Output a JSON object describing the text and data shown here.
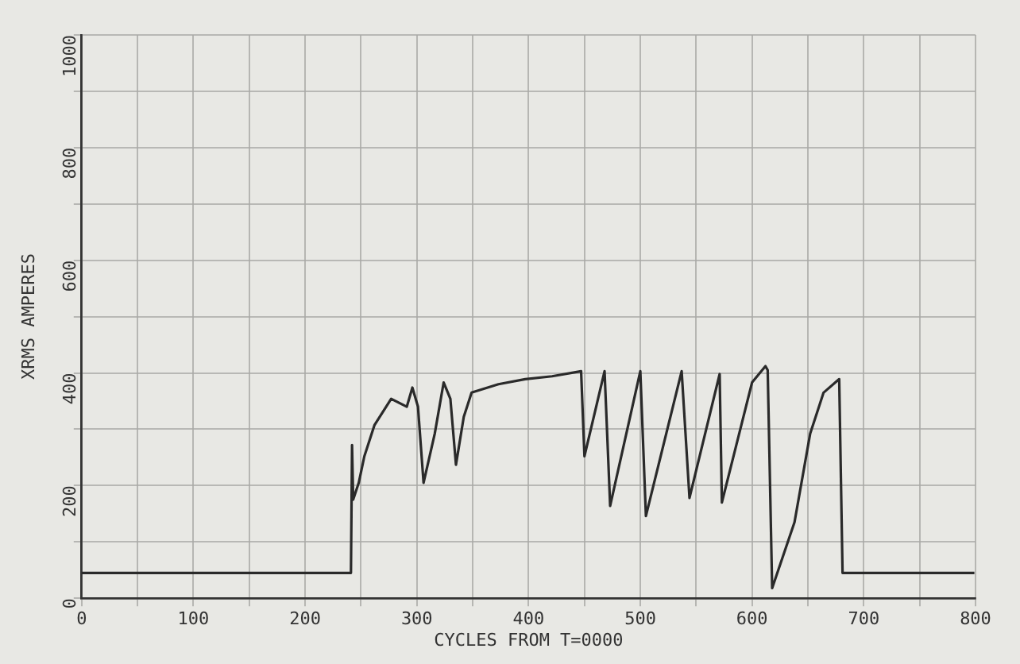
{
  "chart_data": {
    "type": "line",
    "xlabel": "CYCLES FROM T=0000",
    "ylabel": "XRMS AMPERES",
    "xlim": [
      0,
      800
    ],
    "ylim": [
      0,
      1000
    ],
    "xticks": [
      0,
      {
        "value": 50,
        "label": null
      },
      100,
      {
        "value": 150,
        "label": null
      },
      200,
      {
        "value": 250,
        "label": null
      },
      300,
      {
        "value": 350,
        "label": null
      },
      400,
      {
        "value": 450,
        "label": null
      },
      500,
      {
        "value": 550,
        "label": null
      },
      600,
      {
        "value": 650,
        "label": null
      },
      700,
      {
        "value": 750,
        "label": null
      },
      800
    ],
    "yticks": [
      0,
      {
        "value": 100,
        "label": null
      },
      200,
      {
        "value": 300,
        "label": null
      },
      400,
      {
        "value": 500,
        "label": null
      },
      600,
      {
        "value": 700,
        "label": null
      },
      800,
      {
        "value": 900,
        "label": null
      },
      1000
    ],
    "grid": true,
    "legend": false,
    "marker": "none",
    "line_style": "solid",
    "series": [
      {
        "color": "#2a2a2a",
        "x": [
          0,
          241,
          242,
          243,
          248,
          253,
          262,
          277,
          291,
          296,
          301,
          306,
          316,
          324,
          330,
          335,
          342,
          349,
          373,
          397,
          421,
          447,
          450,
          468,
          473,
          500,
          505,
          537,
          544,
          571,
          573,
          600,
          612,
          614,
          618,
          638,
          652,
          664,
          678,
          681,
          799
        ],
        "values": [
          45,
          45,
          272,
          175,
          205,
          252,
          307,
          354,
          340,
          374,
          340,
          205,
          292,
          383,
          354,
          237,
          322,
          365,
          380,
          389,
          394,
          403,
          252,
          403,
          164,
          403,
          146,
          403,
          178,
          398,
          170,
          383,
          412,
          405,
          18,
          135,
          292,
          365,
          389,
          45,
          45
        ]
      }
    ]
  }
}
